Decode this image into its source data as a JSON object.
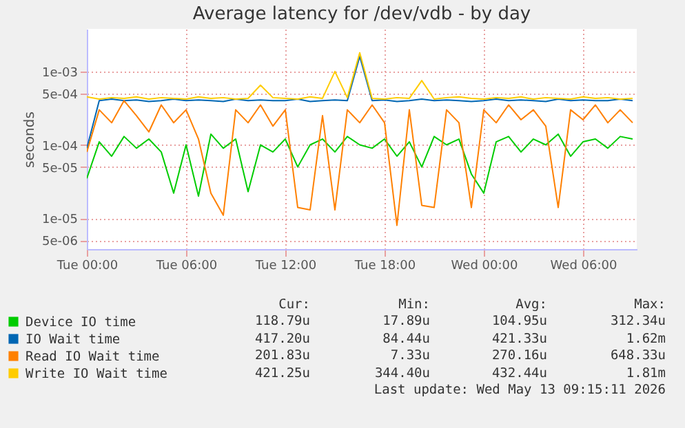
{
  "chart_data": {
    "type": "line",
    "title": "Average latency for /dev/vdb - by day",
    "ylabel": "seconds",
    "log": true,
    "grid": true,
    "legend": "bottom left",
    "marker": "none",
    "line_style": "solid",
    "x": [
      "--05-12T00:00",
      "--05-12T00:45",
      "--05-12T01:30",
      "--05-12T02:15",
      "--05-12T03:00",
      "--05-12T03:45",
      "--05-12T04:30",
      "--05-12T05:15",
      "--05-12T06:00",
      "--05-12T06:45",
      "--05-12T07:30",
      "--05-12T08:15",
      "--05-12T09:00",
      "--05-12T09:45",
      "--05-12T10:30",
      "--05-12T11:15",
      "--05-12T12:00",
      "--05-12T12:45",
      "--05-12T13:30",
      "--05-12T14:15",
      "--05-12T15:00",
      "--05-12T15:45",
      "--05-12T16:30",
      "--05-12T17:15",
      "--05-12T18:00",
      "--05-12T18:45",
      "--05-12T19:30",
      "--05-12T20:15",
      "--05-12T21:00",
      "--05-12T21:45",
      "--05-12T22:30",
      "--05-12T23:15",
      "--05-13T00:00",
      "--05-13T00:45",
      "--05-13T01:30",
      "--05-13T02:15",
      "--05-13T03:00",
      "--05-13T03:45",
      "--05-13T04:30",
      "--05-13T05:15",
      "--05-13T06:00",
      "--05-13T06:45",
      "--05-13T07:30",
      "--05-13T08:15",
      "--05-13T09:00"
    ],
    "xlim": [
      "--05-12T00:00",
      "--05-13T09:15"
    ],
    "xticks": [
      {
        "value": "--05-12T00:00",
        "label": "Tue 00:00"
      },
      {
        "value": "--05-12T06:00",
        "label": "Tue 06:00"
      },
      {
        "value": "--05-12T12:00",
        "label": "Tue 12:00"
      },
      {
        "value": "--05-12T18:00",
        "label": "Tue 18:00"
      },
      {
        "value": "--05-13T00:00",
        "label": "Wed 00:00"
      },
      {
        "value": "--05-13T06:00",
        "label": "Wed 06:00"
      }
    ],
    "ylim": [
      3.8e-06,
      0.0038
    ],
    "yticks": [
      {
        "value": 5e-06,
        "label": "5e-06"
      },
      {
        "value": 1e-05,
        "label": "1e-05"
      },
      {
        "value": 5e-05,
        "label": "5e-05"
      },
      {
        "value": 0.0001,
        "label": "1e-04"
      },
      {
        "value": 0.0005,
        "label": "5e-04"
      },
      {
        "value": 0.001,
        "label": "1e-03"
      }
    ],
    "series": [
      {
        "name": "Device IO time",
        "color": "#00cc00",
        "values": [
          3.5e-05,
          0.00011,
          7e-05,
          0.00013,
          9e-05,
          0.00012,
          8e-05,
          2.2e-05,
          0.0001,
          2e-05,
          0.00014,
          9e-05,
          0.00012,
          2.3e-05,
          0.0001,
          8e-05,
          0.00012,
          5e-05,
          0.0001,
          0.00012,
          8e-05,
          0.00013,
          0.0001,
          9e-05,
          0.00012,
          7e-05,
          0.00011,
          5e-05,
          0.00013,
          0.0001,
          0.00012,
          4e-05,
          2.2e-05,
          0.00011,
          0.00013,
          8e-05,
          0.00012,
          0.0001,
          0.00014,
          7e-05,
          0.00011,
          0.00012,
          9e-05,
          0.00013,
          0.00012
        ]
      },
      {
        "name": "IO Wait time",
        "color": "#0066b3",
        "values": [
          9e-05,
          0.0004,
          0.00042,
          0.0004,
          0.00041,
          0.00039,
          0.0004,
          0.00042,
          0.0004,
          0.00041,
          0.0004,
          0.00039,
          0.00042,
          0.0004,
          0.00041,
          0.0004,
          0.0004,
          0.00042,
          0.00039,
          0.0004,
          0.00041,
          0.0004,
          0.0016,
          0.0004,
          0.00041,
          0.00039,
          0.0004,
          0.00042,
          0.0004,
          0.00041,
          0.0004,
          0.00039,
          0.0004,
          0.00042,
          0.0004,
          0.00041,
          0.0004,
          0.00039,
          0.00042,
          0.0004,
          0.00041,
          0.0004,
          0.0004,
          0.00042,
          0.0004
        ]
      },
      {
        "name": "Read IO Wait time",
        "color": "#ff8000",
        "values": [
          8e-05,
          0.0003,
          0.0002,
          0.0004,
          0.00025,
          0.00015,
          0.00035,
          0.0002,
          0.0003,
          0.00012,
          2.2e-05,
          1.1e-05,
          0.0003,
          0.0002,
          0.00035,
          0.00018,
          0.0003,
          1.4e-05,
          1.3e-05,
          0.00025,
          1.3e-05,
          0.0003,
          0.0002,
          0.00035,
          0.0002,
          8e-06,
          0.0003,
          1.5e-05,
          1.4e-05,
          0.0003,
          0.0002,
          1.4e-05,
          0.0003,
          0.0002,
          0.00035,
          0.00022,
          0.0003,
          0.00018,
          1.4e-05,
          0.0003,
          0.00022,
          0.00035,
          0.0002,
          0.0003,
          0.0002
        ]
      },
      {
        "name": "Write IO Wait time",
        "color": "#ffcc00",
        "values": [
          0.00045,
          0.00042,
          0.00044,
          0.00043,
          0.00045,
          0.00042,
          0.00044,
          0.00043,
          0.00042,
          0.00045,
          0.00043,
          0.00044,
          0.00042,
          0.00043,
          0.00065,
          0.00044,
          0.00043,
          0.00042,
          0.00045,
          0.00043,
          0.001,
          0.00044,
          0.0018,
          0.00043,
          0.00042,
          0.00044,
          0.00043,
          0.00075,
          0.00042,
          0.00044,
          0.00045,
          0.00043,
          0.00042,
          0.00044,
          0.00043,
          0.00045,
          0.00042,
          0.00044,
          0.00043,
          0.00042,
          0.00045,
          0.00043,
          0.00044,
          0.00042,
          0.00043
        ]
      }
    ],
    "annotations": [
      "Cur:",
      "Min:",
      "Avg:",
      "Max:",
      "118.79u",
      "17.89u",
      "104.95u",
      "312.34u",
      "417.20u",
      "84.44u",
      "421.33u",
      "1.62m",
      "201.83u",
      "7.33u",
      "270.16u",
      "648.33u",
      "421.25u",
      "344.40u",
      "432.44u",
      "1.81m",
      "Last update: Wed May 13 09:15:11 2026"
    ]
  }
}
